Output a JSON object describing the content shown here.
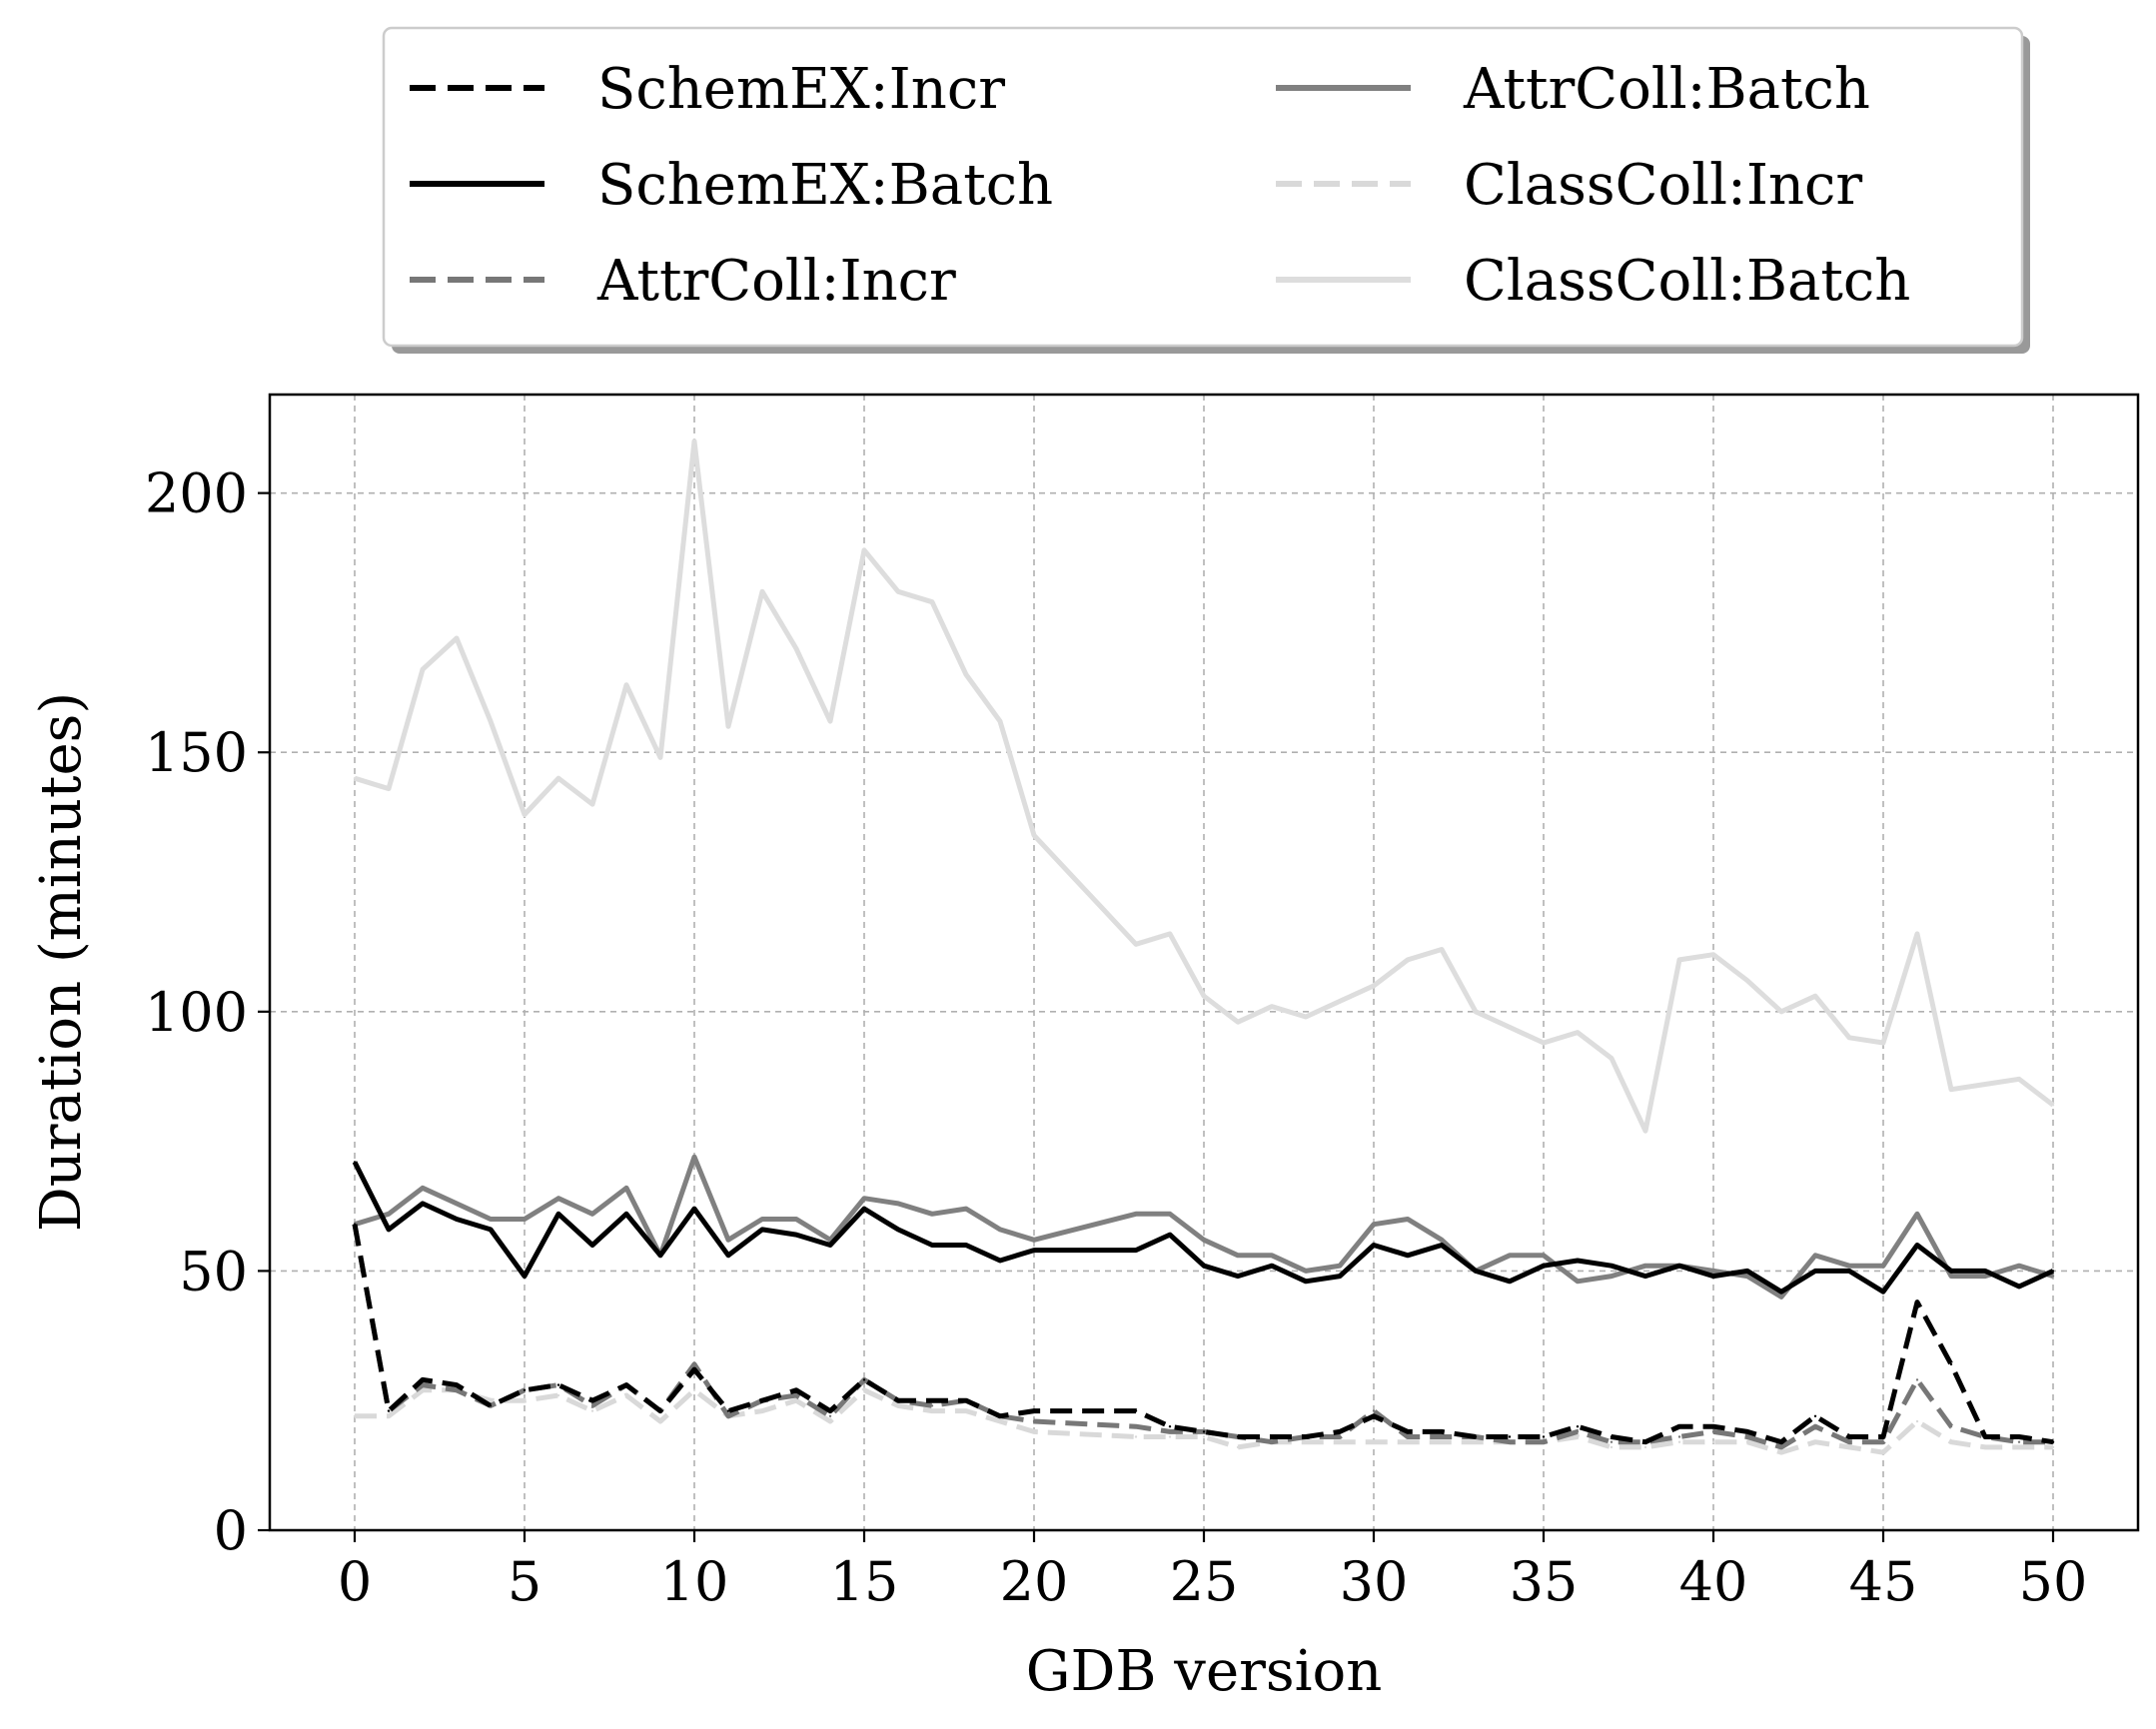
{
  "chart_data": {
    "type": "line",
    "title": "",
    "xlabel": "GDB version",
    "ylabel": "Duration (minutes)",
    "xlim": [
      -2.5,
      52.5
    ],
    "ylim": [
      0,
      219
    ],
    "xticks": [
      0,
      5,
      10,
      15,
      20,
      25,
      30,
      35,
      40,
      45,
      50
    ],
    "yticks": [
      0,
      50,
      100,
      150,
      200
    ],
    "grid": true,
    "legend_position": "top-center",
    "legend_columns": 2,
    "series": [
      {
        "name": "SchemEX:Incr",
        "color": "#000000",
        "dash": "dashed",
        "x": [
          0,
          1,
          2,
          3,
          4,
          5,
          6,
          7,
          8,
          9,
          10,
          11,
          12,
          13,
          14,
          15,
          16,
          17,
          18,
          19,
          20,
          23,
          24,
          25,
          26,
          27,
          28,
          29,
          30,
          31,
          32,
          33,
          34,
          35,
          36,
          37,
          38,
          39,
          40,
          41,
          42,
          43,
          44,
          45,
          46,
          47,
          48,
          49,
          50
        ],
        "values": [
          59,
          23,
          29,
          28,
          24,
          27,
          28,
          25,
          28,
          23,
          31,
          23,
          25,
          27,
          23,
          29,
          25,
          25,
          25,
          22,
          23,
          23,
          20,
          19,
          18,
          18,
          18,
          19,
          22,
          19,
          19,
          18,
          18,
          18,
          20,
          18,
          17,
          20,
          20,
          19,
          17,
          22,
          18,
          18,
          44,
          32,
          18,
          18,
          17
        ]
      },
      {
        "name": "SchemEX:Batch",
        "color": "#000000",
        "dash": "solid",
        "x": [
          0,
          1,
          2,
          3,
          4,
          5,
          6,
          7,
          8,
          9,
          10,
          11,
          12,
          13,
          14,
          15,
          16,
          17,
          18,
          19,
          20,
          23,
          24,
          25,
          26,
          27,
          28,
          29,
          30,
          31,
          32,
          33,
          34,
          35,
          36,
          37,
          38,
          39,
          40,
          41,
          42,
          43,
          44,
          45,
          46,
          47,
          48,
          49,
          50
        ],
        "values": [
          71,
          58,
          63,
          60,
          58,
          49,
          61,
          55,
          61,
          53,
          62,
          53,
          58,
          57,
          55,
          62,
          58,
          55,
          55,
          52,
          54,
          54,
          57,
          51,
          49,
          51,
          48,
          49,
          55,
          53,
          55,
          50,
          48,
          51,
          52,
          51,
          49,
          51,
          49,
          50,
          46,
          50,
          50,
          46,
          55,
          50,
          50,
          47,
          50
        ]
      },
      {
        "name": "AttrColl:Incr",
        "color": "#777777",
        "dash": "dashed",
        "x": [
          0,
          1,
          2,
          3,
          4,
          5,
          6,
          7,
          8,
          9,
          10,
          11,
          12,
          13,
          14,
          15,
          16,
          17,
          18,
          19,
          20,
          23,
          24,
          25,
          26,
          27,
          28,
          29,
          30,
          31,
          32,
          33,
          34,
          35,
          36,
          37,
          38,
          39,
          40,
          41,
          42,
          43,
          44,
          45,
          46,
          47,
          48,
          49,
          50
        ],
        "values": [
          59,
          23,
          28,
          27,
          24,
          27,
          28,
          24,
          28,
          23,
          32,
          22,
          25,
          26,
          22,
          29,
          25,
          24,
          25,
          22,
          21,
          20,
          19,
          19,
          18,
          17,
          18,
          18,
          23,
          18,
          18,
          18,
          17,
          17,
          19,
          17,
          17,
          18,
          19,
          18,
          16,
          20,
          17,
          17,
          29,
          20,
          18,
          17,
          17
        ]
      },
      {
        "name": "AttrColl:Batch",
        "color": "#808080",
        "dash": "solid",
        "x": [
          0,
          1,
          2,
          3,
          4,
          5,
          6,
          7,
          8,
          9,
          10,
          11,
          12,
          13,
          14,
          15,
          16,
          17,
          18,
          19,
          20,
          23,
          24,
          25,
          26,
          27,
          28,
          29,
          30,
          31,
          32,
          33,
          34,
          35,
          36,
          37,
          38,
          39,
          40,
          41,
          42,
          43,
          44,
          45,
          46,
          47,
          48,
          49,
          50
        ],
        "values": [
          59,
          61,
          66,
          63,
          60,
          60,
          64,
          61,
          66,
          53,
          72,
          56,
          60,
          60,
          56,
          64,
          63,
          61,
          62,
          58,
          56,
          61,
          61,
          56,
          53,
          53,
          50,
          51,
          59,
          60,
          56,
          50,
          53,
          53,
          48,
          49,
          51,
          51,
          50,
          49,
          45,
          53,
          51,
          51,
          61,
          49,
          49,
          51,
          49
        ]
      },
      {
        "name": "ClassColl:Incr",
        "color": "#d9d9d9",
        "dash": "dashed",
        "x": [
          0,
          1,
          2,
          3,
          4,
          5,
          6,
          7,
          8,
          9,
          10,
          11,
          12,
          13,
          14,
          15,
          16,
          17,
          18,
          19,
          20,
          23,
          24,
          25,
          26,
          27,
          28,
          29,
          30,
          31,
          32,
          33,
          34,
          35,
          36,
          37,
          38,
          39,
          40,
          41,
          42,
          43,
          44,
          45,
          46,
          47,
          48,
          49,
          50
        ],
        "values": [
          22,
          22,
          27,
          27,
          25,
          25,
          26,
          23,
          26,
          21,
          27,
          22,
          23,
          25,
          21,
          27,
          24,
          23,
          23,
          21,
          19,
          18,
          18,
          18,
          16,
          17,
          17,
          17,
          17,
          17,
          17,
          17,
          17,
          17,
          18,
          16,
          16,
          17,
          17,
          17,
          15,
          17,
          16,
          15,
          21,
          17,
          16,
          16,
          16
        ]
      },
      {
        "name": "ClassColl:Batch",
        "color": "#dddddd",
        "dash": "solid",
        "x": [
          0,
          1,
          2,
          3,
          4,
          5,
          6,
          7,
          8,
          9,
          10,
          11,
          12,
          13,
          14,
          15,
          16,
          17,
          18,
          19,
          20,
          23,
          24,
          25,
          26,
          27,
          28,
          29,
          30,
          31,
          32,
          33,
          34,
          35,
          36,
          37,
          38,
          39,
          40,
          41,
          42,
          43,
          44,
          45,
          46,
          47,
          48,
          49,
          50
        ],
        "values": [
          145,
          143,
          166,
          172,
          156,
          138,
          145,
          140,
          163,
          149,
          210,
          155,
          181,
          170,
          156,
          189,
          181,
          179,
          165,
          156,
          134,
          113,
          115,
          103,
          98,
          101,
          99,
          102,
          105,
          110,
          112,
          100,
          97,
          94,
          96,
          91,
          77,
          110,
          111,
          106,
          100,
          103,
          95,
          94,
          115,
          85,
          86,
          87,
          82
        ]
      }
    ]
  }
}
